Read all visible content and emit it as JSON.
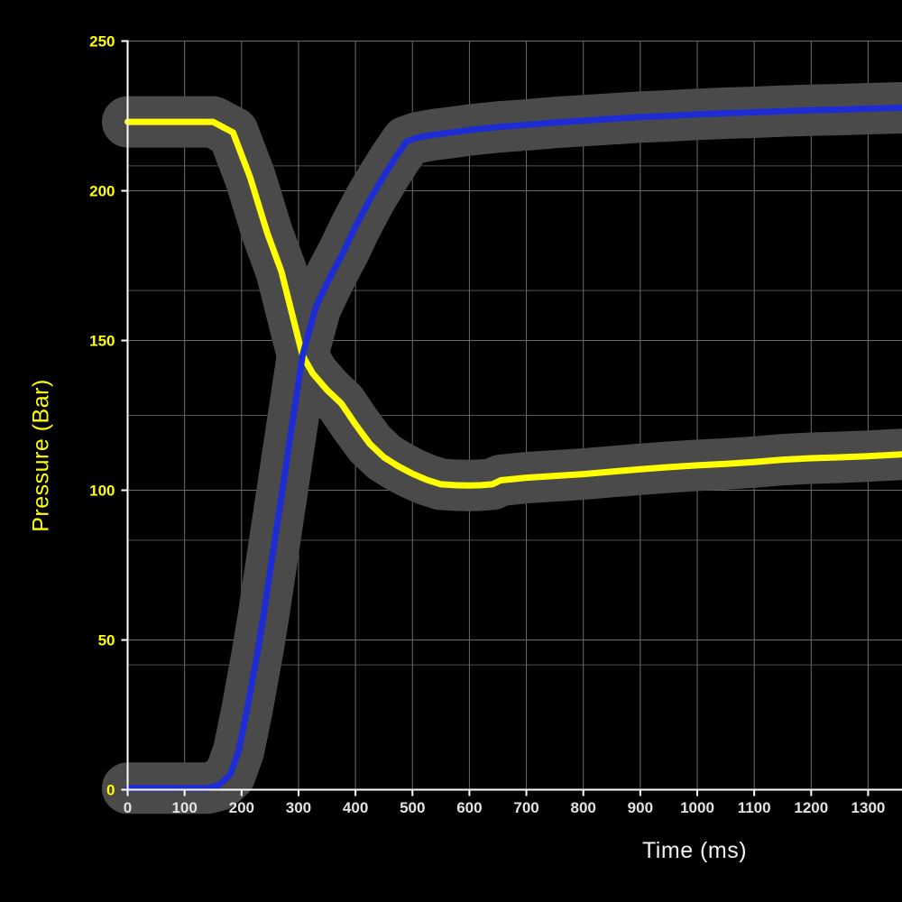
{
  "chart_data": {
    "type": "line",
    "title": "",
    "xlabel": "Time (ms)",
    "ylabel": "Pressure (Bar)",
    "xlim": [
      0,
      1360
    ],
    "ylim": [
      0,
      250
    ],
    "grid": "on",
    "legend_position": "none",
    "x_ticks": [
      0,
      100,
      200,
      300,
      400,
      500,
      600,
      700,
      800,
      900,
      1000,
      1100,
      1200,
      1300
    ],
    "y_ticks": [
      0,
      50,
      100,
      150,
      200,
      250
    ],
    "y_minor_gridlines": [
      41.67,
      83.33,
      125,
      166.67,
      208.33
    ],
    "colors": {
      "background": "#000000",
      "axis": "#ffffff",
      "grid_major": "#6b6b6b",
      "grid_minor": "#525252",
      "x_tick_label": "#e2e2e2",
      "y_tick_label": "#ffff00",
      "halo": "#4a4a4a"
    },
    "series": [
      {
        "name": "pressure-yellow",
        "color": "#ffff00",
        "points": [
          [
            0,
            223
          ],
          [
            140,
            223
          ],
          [
            150,
            223
          ],
          [
            185,
            219.5
          ],
          [
            215,
            204.5
          ],
          [
            245,
            186
          ],
          [
            270,
            173
          ],
          [
            307,
            145
          ],
          [
            325,
            139
          ],
          [
            350,
            133.5
          ],
          [
            375,
            129
          ],
          [
            400,
            122
          ],
          [
            425,
            115.5
          ],
          [
            450,
            111
          ],
          [
            475,
            108
          ],
          [
            500,
            105.5
          ],
          [
            525,
            103.5
          ],
          [
            550,
            102
          ],
          [
            575,
            101.7
          ],
          [
            600,
            101.6
          ],
          [
            620,
            101.7
          ],
          [
            640,
            102
          ],
          [
            655,
            103.3
          ],
          [
            700,
            104.2
          ],
          [
            750,
            104.8
          ],
          [
            800,
            105.4
          ],
          [
            850,
            106.2
          ],
          [
            900,
            107
          ],
          [
            950,
            107.7
          ],
          [
            1000,
            108.3
          ],
          [
            1050,
            108.8
          ],
          [
            1100,
            109.4
          ],
          [
            1150,
            110.2
          ],
          [
            1200,
            110.7
          ],
          [
            1250,
            111
          ],
          [
            1300,
            111.4
          ],
          [
            1359,
            112
          ]
        ]
      },
      {
        "name": "pressure-blue",
        "color": "#1e2cd4",
        "points": [
          [
            0,
            0.5
          ],
          [
            140,
            0.5
          ],
          [
            160,
            1.5
          ],
          [
            180,
            5
          ],
          [
            195,
            13
          ],
          [
            210,
            27
          ],
          [
            230,
            48
          ],
          [
            240,
            60
          ],
          [
            270,
            98
          ],
          [
            307,
            145
          ],
          [
            330,
            161
          ],
          [
            355,
            171
          ],
          [
            380,
            180
          ],
          [
            400,
            188
          ],
          [
            425,
            197
          ],
          [
            450,
            205
          ],
          [
            470,
            211
          ],
          [
            490,
            216.5
          ],
          [
            510,
            217.8
          ],
          [
            540,
            218.8
          ],
          [
            570,
            219.5
          ],
          [
            600,
            220.3
          ],
          [
            650,
            221.3
          ],
          [
            700,
            222
          ],
          [
            750,
            222.8
          ],
          [
            800,
            223.4
          ],
          [
            850,
            224
          ],
          [
            900,
            224.6
          ],
          [
            950,
            225
          ],
          [
            1000,
            225.5
          ],
          [
            1050,
            225.9
          ],
          [
            1100,
            226.2
          ],
          [
            1150,
            226.6
          ],
          [
            1200,
            226.9
          ],
          [
            1250,
            227.1
          ],
          [
            1300,
            227.4
          ],
          [
            1359,
            227.7
          ]
        ]
      }
    ]
  }
}
